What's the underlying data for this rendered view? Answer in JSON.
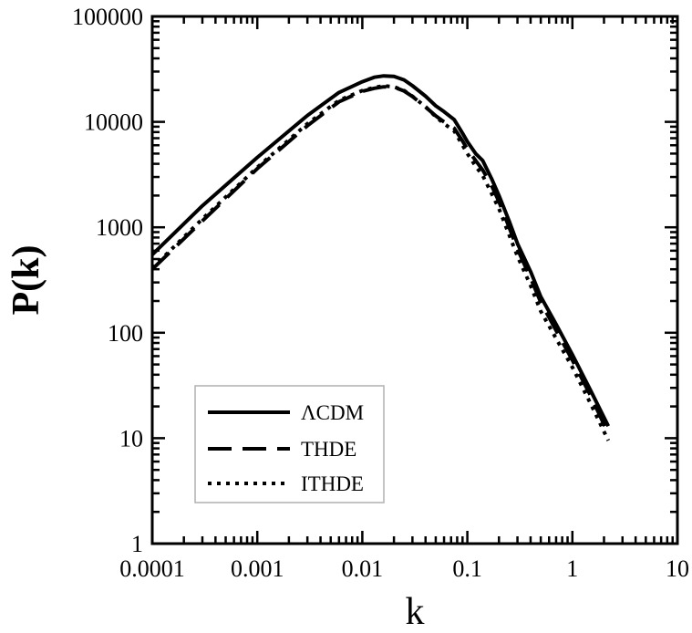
{
  "chart_data": {
    "type": "line",
    "title": "",
    "xlabel": "k",
    "ylabel": "P(k)",
    "xscale": "log",
    "yscale": "log",
    "xlim": [
      0.0001,
      10
    ],
    "ylim": [
      1,
      100000
    ],
    "x_tick_labels": [
      "0.0001",
      "0.001",
      "0.01",
      "0.1",
      "1",
      "10"
    ],
    "y_tick_labels": [
      "1",
      "10",
      "100",
      "1000",
      "10000",
      "100000"
    ],
    "grid": false,
    "legend_position": "bottom-left",
    "series": [
      {
        "name": "ΛCDM",
        "style": "solid",
        "x": [
          0.0001,
          0.0003,
          0.001,
          0.003,
          0.006,
          0.01,
          0.013,
          0.016,
          0.02,
          0.025,
          0.03,
          0.04,
          0.05,
          0.06,
          0.075,
          0.09,
          0.1,
          0.12,
          0.14,
          0.17,
          0.2,
          0.25,
          0.3,
          0.4,
          0.5,
          0.7,
          1.0,
          1.5,
          2.2
        ],
        "y": [
          550,
          1600,
          4600,
          11500,
          19000,
          24000,
          26500,
          27300,
          27000,
          25000,
          22000,
          17500,
          14200,
          12500,
          10500,
          7800,
          6500,
          5000,
          4300,
          2900,
          2000,
          1150,
          700,
          380,
          220,
          120,
          62,
          28,
          13
        ]
      },
      {
        "name": "THDE",
        "style": "dashed",
        "x": [
          0.0001,
          0.0003,
          0.001,
          0.003,
          0.006,
          0.01,
          0.013,
          0.016,
          0.02,
          0.025,
          0.03,
          0.04,
          0.05,
          0.06,
          0.075,
          0.09,
          0.1,
          0.12,
          0.14,
          0.17,
          0.2,
          0.25,
          0.3,
          0.4,
          0.5,
          0.7,
          1.0,
          1.5,
          2.2
        ],
        "y": [
          400,
          1150,
          3600,
          9200,
          15500,
          19500,
          20800,
          21500,
          21300,
          19600,
          17400,
          13800,
          11400,
          10000,
          8700,
          6600,
          5500,
          4300,
          3500,
          2500,
          1750,
          1000,
          620,
          330,
          195,
          105,
          55,
          25,
          11
        ]
      },
      {
        "name": "ITHDE",
        "style": "dotted",
        "x": [
          0.0001,
          0.0003,
          0.001,
          0.003,
          0.006,
          0.01,
          0.013,
          0.016,
          0.02,
          0.025,
          0.03,
          0.04,
          0.05,
          0.06,
          0.075,
          0.09,
          0.1,
          0.12,
          0.14,
          0.17,
          0.2,
          0.25,
          0.3,
          0.4,
          0.5,
          0.7,
          1.0,
          1.5,
          2.2
        ],
        "y": [
          410,
          1200,
          3700,
          9600,
          16000,
          19800,
          21200,
          21900,
          21500,
          19800,
          17500,
          13900,
          11200,
          9600,
          8200,
          6000,
          5000,
          3800,
          3100,
          2100,
          1500,
          850,
          530,
          280,
          160,
          88,
          47,
          21,
          9.5
        ]
      }
    ]
  }
}
